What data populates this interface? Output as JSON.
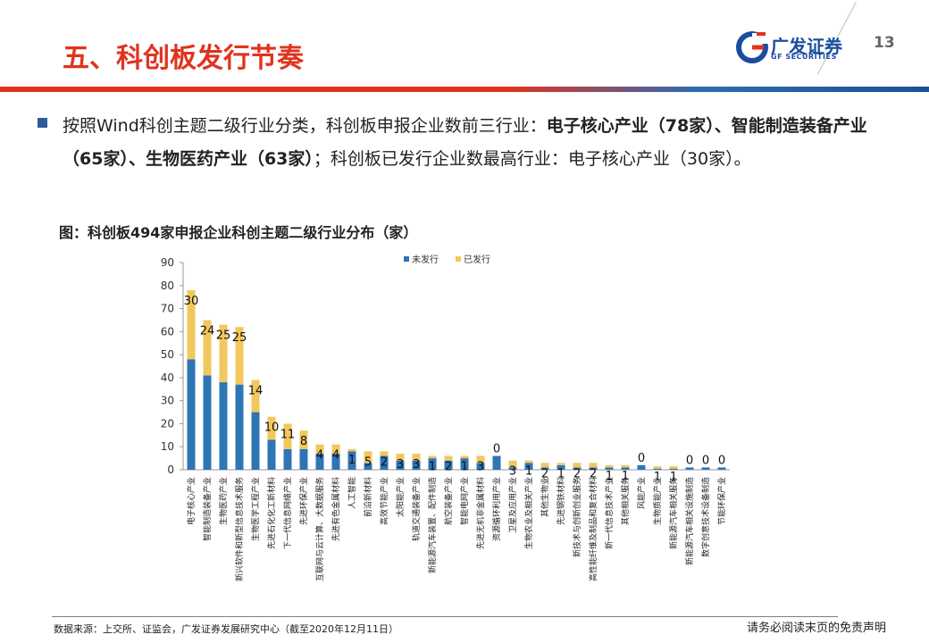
{
  "header": {
    "title": "五、科创板发行节奏",
    "logo_text": "广发证券",
    "logo_sub": "GF SECURITIES",
    "page_number": "13"
  },
  "body": {
    "p1": "按照Wind科创主题二级行业分类，科创板申报企业数前三行业：",
    "p2_bold": "电子核心产业（78家）、智能制造装备产业（65家）、生物医药产业（63家）",
    "p3": "；科创板已发行企业数最高行业：电子核心产业（30家）。"
  },
  "figure_title": "图：科创板494家申报企业科创主题二级行业分布（家）",
  "footer": {
    "source": "数据来源：上交所、证监会，广发证券发展研究中心（截至2020年12月11日）",
    "disclaimer": "请务必阅读末页的免责声明"
  },
  "colors": {
    "unissued": "#2e75b6",
    "issued": "#f2c75c",
    "accent": "#e0331f"
  },
  "chart_data": {
    "type": "bar",
    "stacked": true,
    "ylim": [
      0,
      90
    ],
    "yticks": [
      0,
      10,
      20,
      30,
      40,
      50,
      60,
      70,
      80,
      90
    ],
    "legend_position": "top",
    "categories": [
      "电子核心产业",
      "智能制造装备产业",
      "生物医药产业",
      "新兴软件和新型信息技术服务",
      "生物医学工程产业",
      "先进石化化工新材料",
      "下一代信息网络产业",
      "先进环保产业",
      "互联网与云计算、大数据服务",
      "先进有色金属材料",
      "人工智能",
      "前沿新材料",
      "高效节能产业",
      "太阳能产业",
      "轨道交通装备产业",
      "新能源汽车装置、配件制造",
      "航空装备产业",
      "智能电网产业",
      "先进无机非金属材料",
      "资源循环利用产业",
      "卫星及应用产业",
      "生物农业及相关产业",
      "其他生物业",
      "先进钢铁材料",
      "新技术与创新创业服务",
      "高性能纤维及制品和复合材料",
      "新一代信息技术产业",
      "其他相关服务",
      "风能产业",
      "生物质能产业",
      "新能源汽车相关服务",
      "新能源汽车相关设施制造",
      "数字创意技术设备制造",
      "节能环保产业"
    ],
    "series": [
      {
        "name": "未发行",
        "values": [
          48,
          41,
          38,
          37,
          25,
          13,
          9,
          9,
          7,
          7,
          8,
          3,
          6,
          4,
          4,
          5,
          4,
          5,
          3,
          6,
          1,
          3,
          1,
          2,
          1,
          1,
          1,
          1,
          2,
          0.5,
          0.5,
          1,
          1,
          1
        ]
      },
      {
        "name": "已发行",
        "values": [
          30,
          24,
          25,
          25,
          14,
          10,
          11,
          8,
          4,
          4,
          1,
          5,
          2,
          3,
          3,
          1,
          2,
          1,
          3,
          0,
          3,
          1,
          2,
          1,
          2,
          2,
          1,
          1,
          0,
          1,
          1,
          0,
          0,
          0
        ]
      }
    ],
    "data_labels": [
      "30",
      "24",
      "25",
      "25",
      "14",
      "10",
      "11",
      "8",
      "4",
      "4",
      "1",
      "5",
      "2",
      "3",
      "3",
      "1",
      "2",
      "1",
      "3",
      "0",
      "3",
      "1",
      "2",
      "1",
      "2",
      "2",
      "1",
      "1",
      "0",
      "1",
      "1",
      "0",
      "0",
      "0"
    ]
  }
}
